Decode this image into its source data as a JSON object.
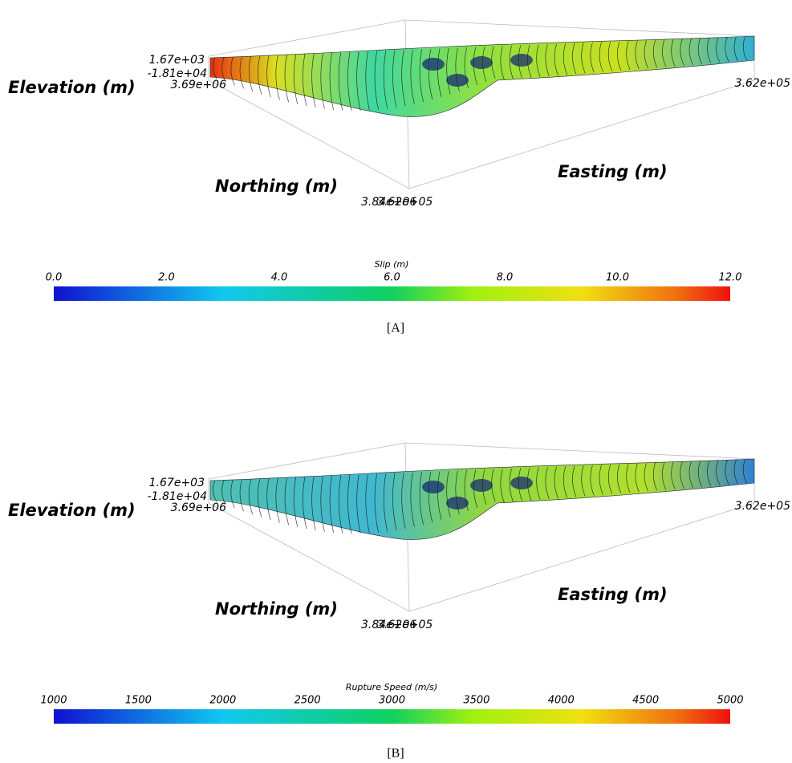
{
  "panels": [
    {
      "axes": {
        "z_max": "1.67e+03",
        "z_label": "Elevation (m)",
        "z_min": "-1.81e+04",
        "y_max": "3.69e+06",
        "y_label": "Northing (m)",
        "y_min": "3.84e+06",
        "x_min": "3.62e+05",
        "x_label": "Easting (m)",
        "x_max": "3.62e+05"
      },
      "colorbar": {
        "title": "Slip (m)",
        "range": [
          0,
          12
        ],
        "ticks": [
          {
            "value": 0,
            "label": "0.0"
          },
          {
            "value": 2,
            "label": "2.0"
          },
          {
            "value": 4,
            "label": "4.0"
          },
          {
            "value": 6,
            "label": "6.0"
          },
          {
            "value": 8,
            "label": "8.0"
          },
          {
            "value": 10,
            "label": "10.0"
          },
          {
            "value": 12,
            "label": "12.0"
          }
        ]
      },
      "caption": "[A]"
    },
    {
      "axes": {
        "z_max": "1.67e+03",
        "z_label": "Elevation (m)",
        "z_min": "-1.81e+04",
        "y_max": "3.69e+06",
        "y_label": "Northing (m)",
        "y_min": "3.84e+06",
        "x_min": "3.62e+05",
        "x_label": "Easting (m)",
        "x_max": "3.62e+05"
      },
      "colorbar": {
        "title": "Rupture Speed (m/s)",
        "range": [
          1000,
          5000
        ],
        "ticks": [
          1000,
          1500,
          2000,
          2500,
          3000,
          3500,
          4000,
          4500,
          5000
        ]
      },
      "caption": "[B]"
    }
  ]
}
